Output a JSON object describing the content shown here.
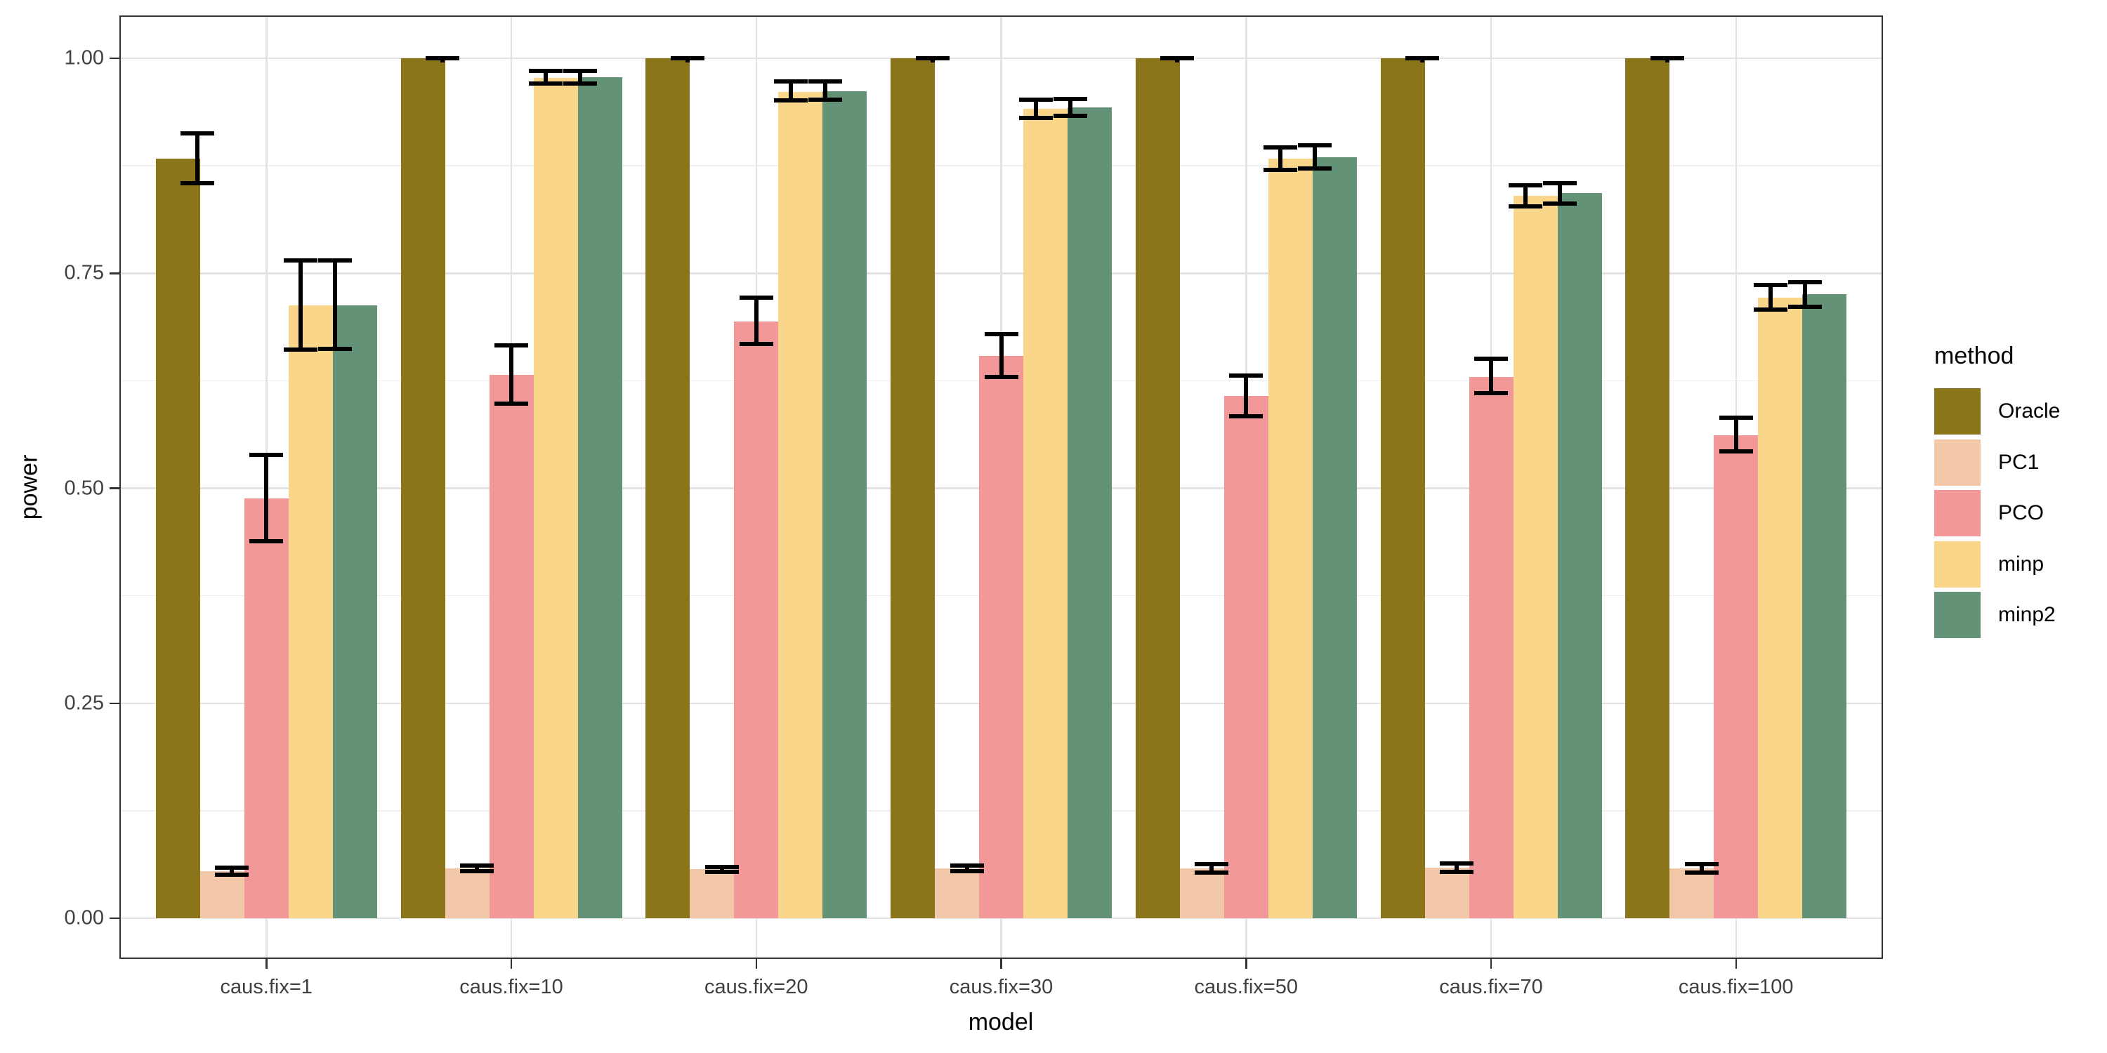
{
  "figure": {
    "background": "#FFFFFF"
  },
  "axes": {
    "y_title": "power",
    "x_title": "model",
    "y_tick_labels": [
      "0.00",
      "0.25",
      "0.50",
      "0.75",
      "1.00"
    ],
    "y_tick_values": [
      0,
      0.25,
      0.5,
      0.75,
      1.0
    ],
    "y_minor_values": [
      0.125,
      0.375,
      0.625,
      0.875
    ]
  },
  "legend": {
    "title": "method",
    "entries": [
      {
        "label": "Oracle",
        "color": "#8B751A"
      },
      {
        "label": "PC1",
        "color": "#F2C8A9"
      },
      {
        "label": "PCO",
        "color": "#F29899"
      },
      {
        "label": "minp",
        "color": "#FAD68A"
      },
      {
        "label": "minp2",
        "color": "#649277"
      }
    ]
  },
  "chart_data": {
    "type": "bar",
    "title": "",
    "xlabel": "model",
    "ylabel": "power",
    "ylim": [
      0,
      1
    ],
    "grid": "major+minor",
    "legend_position": "right",
    "categories": [
      "caus.fix=1",
      "caus.fix=10",
      "caus.fix=20",
      "caus.fix=30",
      "caus.fix=50",
      "caus.fix=70",
      "caus.fix=100"
    ],
    "series": [
      {
        "name": "Oracle",
        "color": "#8B751A",
        "values": [
          0.883,
          1.0,
          1.0,
          1.0,
          1.0,
          1.0,
          1.0
        ],
        "err_low": [
          0.855,
          1.0,
          1.0,
          1.0,
          1.0,
          1.0,
          1.0
        ],
        "err_high": [
          0.913,
          1.0,
          1.0,
          1.0,
          1.0,
          1.0,
          1.0
        ]
      },
      {
        "name": "PC1",
        "color": "#F2C8A9",
        "values": [
          0.055,
          0.058,
          0.057,
          0.058,
          0.058,
          0.059,
          0.058
        ],
        "err_low": [
          0.051,
          0.055,
          0.054,
          0.055,
          0.053,
          0.054,
          0.053
        ],
        "err_high": [
          0.059,
          0.061,
          0.06,
          0.061,
          0.063,
          0.064,
          0.063
        ]
      },
      {
        "name": "PCO",
        "color": "#F29899",
        "values": [
          0.488,
          0.632,
          0.694,
          0.654,
          0.607,
          0.629,
          0.562
        ],
        "err_low": [
          0.438,
          0.598,
          0.668,
          0.629,
          0.584,
          0.611,
          0.543
        ],
        "err_high": [
          0.539,
          0.666,
          0.722,
          0.679,
          0.631,
          0.651,
          0.582
        ]
      },
      {
        "name": "minp",
        "color": "#FAD68A",
        "values": [
          0.713,
          0.977,
          0.961,
          0.941,
          0.883,
          0.84,
          0.722
        ],
        "err_low": [
          0.661,
          0.971,
          0.951,
          0.931,
          0.87,
          0.828,
          0.708
        ],
        "err_high": [
          0.765,
          0.985,
          0.973,
          0.952,
          0.896,
          0.852,
          0.736
        ]
      },
      {
        "name": "minp2",
        "color": "#649277",
        "values": [
          0.713,
          0.978,
          0.962,
          0.943,
          0.885,
          0.843,
          0.726
        ],
        "err_low": [
          0.662,
          0.971,
          0.952,
          0.933,
          0.872,
          0.831,
          0.711
        ],
        "err_high": [
          0.765,
          0.985,
          0.973,
          0.953,
          0.899,
          0.855,
          0.74
        ]
      }
    ]
  }
}
